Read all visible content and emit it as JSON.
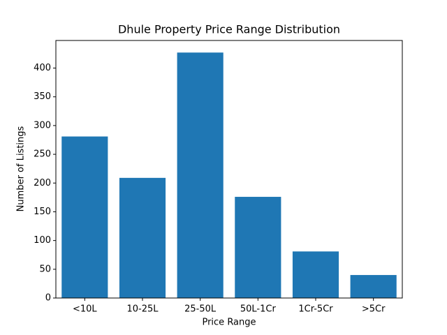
{
  "chart_data": {
    "type": "bar",
    "title": "Dhule Property Price Range Distribution",
    "x_label": "Price Range",
    "y_label": "Number of Listings",
    "categories": [
      "<10L",
      "10-25L",
      "25-50L",
      "50L-1Cr",
      "1Cr-5Cr",
      ">5Cr"
    ],
    "values": [
      281,
      209,
      427,
      176,
      81,
      40
    ],
    "color": "#1f77b4",
    "ylim": [
      0,
      448
    ],
    "yticks": [
      0,
      50,
      100,
      150,
      200,
      250,
      300,
      350,
      400
    ],
    "grid": false
  }
}
